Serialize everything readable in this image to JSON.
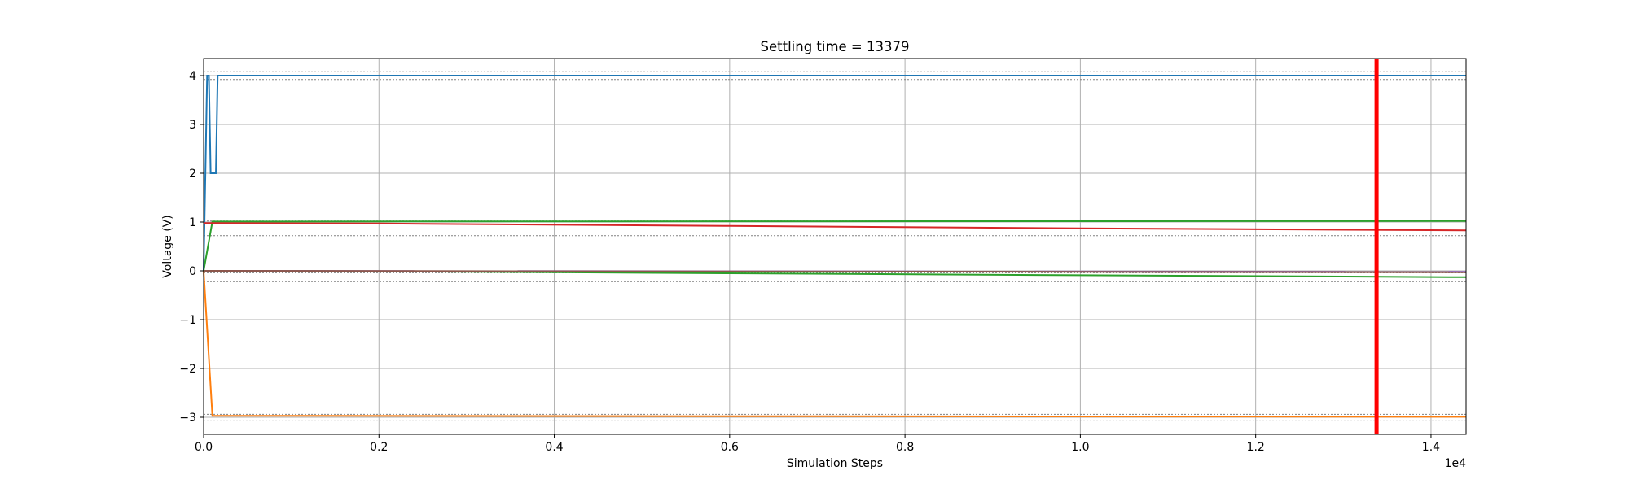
{
  "chart_data": {
    "type": "line",
    "title": "Settling time = 13379",
    "xlabel": "Simulation Steps",
    "ylabel": "Voltage (V)",
    "x_offset_label": "1e4",
    "xlim": [
      0,
      14400
    ],
    "ylim": [
      -3.35,
      4.35
    ],
    "x_ticks": [
      0,
      2000,
      4000,
      6000,
      8000,
      10000,
      12000,
      14000
    ],
    "x_tick_labels": [
      "0.0",
      "0.2",
      "0.4",
      "0.6",
      "0.8",
      "1.0",
      "1.2",
      "1.4"
    ],
    "y_ticks": [
      -3,
      -2,
      -1,
      0,
      1,
      2,
      3,
      4
    ],
    "y_tick_labels": [
      "−3",
      "−2",
      "−1",
      "0",
      "1",
      "2",
      "3",
      "4"
    ],
    "grid": true,
    "settling_marker": {
      "x": 13379,
      "color": "#ff0000"
    },
    "tolerance_bands": [
      {
        "center": 4,
        "lower": 3.92,
        "upper": 4.08
      },
      {
        "center": 1,
        "lower": 0.72,
        "upper": 1.02
      },
      {
        "center": 0,
        "lower": -0.22,
        "upper": -0.04
      },
      {
        "center": -3,
        "lower": -3.06,
        "upper": -2.94
      }
    ],
    "series": [
      {
        "color": "#1f77b4",
        "points": [
          [
            0,
            0
          ],
          [
            40,
            4
          ],
          [
            60,
            4
          ],
          [
            80,
            2
          ],
          [
            140,
            2
          ],
          [
            160,
            4
          ],
          [
            14400,
            4
          ]
        ]
      },
      {
        "color": "#ff7f0e",
        "points": [
          [
            0,
            0
          ],
          [
            100,
            -2.97
          ],
          [
            14400,
            -2.99
          ]
        ]
      },
      {
        "color": "#2ca02c",
        "points": [
          [
            0,
            0
          ],
          [
            100,
            1.01
          ],
          [
            14400,
            1.02
          ]
        ]
      },
      {
        "color": "#2ca02c",
        "points": [
          [
            0,
            0
          ],
          [
            2000,
            -0.01
          ],
          [
            6000,
            -0.05
          ],
          [
            10000,
            -0.09
          ],
          [
            14400,
            -0.13
          ]
        ]
      },
      {
        "color": "#d62728",
        "points": [
          [
            0,
            0.98
          ],
          [
            2000,
            0.97
          ],
          [
            6000,
            0.92
          ],
          [
            10000,
            0.87
          ],
          [
            14400,
            0.83
          ]
        ]
      },
      {
        "color": "#9467bd",
        "points": [
          [
            0,
            0
          ],
          [
            14400,
            -0.02
          ]
        ]
      },
      {
        "color": "#8c564b",
        "points": [
          [
            0,
            0
          ],
          [
            14400,
            -0.03
          ]
        ]
      }
    ]
  }
}
